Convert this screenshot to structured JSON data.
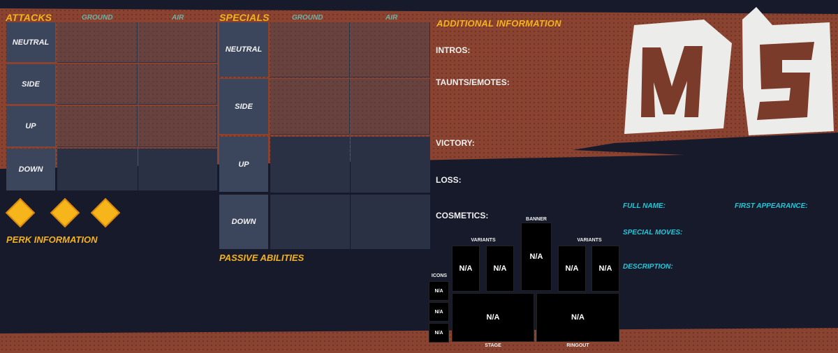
{
  "attacks": {
    "title": "ATTACKS",
    "col_ground": "GROUND",
    "col_air": "AIR",
    "rows": [
      "NEUTRAL",
      "SIDE",
      "UP",
      "DOWN"
    ]
  },
  "specials": {
    "title": "SPECIALS",
    "col_ground": "GROUND",
    "col_air": "AIR",
    "rows": [
      "NEUTRAL",
      "SIDE",
      "UP",
      "DOWN"
    ]
  },
  "perk": {
    "title": "PERK INFORMATION",
    "diamond_count": 3
  },
  "passive": {
    "title": "PASSIVE ABILITIES"
  },
  "additional": {
    "title": "ADDITIONAL INFORMATION",
    "intros": "INTROS:",
    "taunts": "TAUNTS/EMOTES:",
    "victory": "VICTORY:",
    "loss": "LOSS:",
    "cosmetics": "COSMETICS:"
  },
  "cosmetics": {
    "banner_label": "BANNER",
    "variants_label": "VARIANTS",
    "icons_label": "ICONS",
    "stage_label": "STAGE",
    "ringout_label": "RINGOUT",
    "na": "N/A"
  },
  "profile": {
    "full_name": "FULL NAME:",
    "first_appearance": "FIRST APPEARANCE:",
    "special_moves": "SPECIAL MOVES:",
    "description": "DESCRIPTION:"
  },
  "logo": {
    "text": "MVS"
  },
  "colors": {
    "accent": "#f5b21b",
    "cyan": "#22c8d8",
    "band": "#8a4330",
    "bg": "#161a2b"
  }
}
